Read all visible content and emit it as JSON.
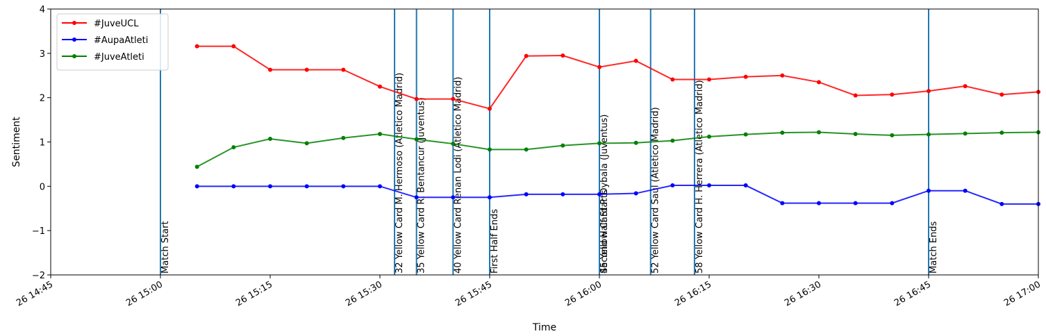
{
  "chart_data": {
    "type": "line",
    "title": "",
    "xlabel": "Time",
    "ylabel": "Sentiment",
    "ylim": [
      -2,
      4
    ],
    "yticks": [
      -2,
      -1,
      0,
      1,
      2,
      3,
      4
    ],
    "ytick_labels": [
      "−2",
      "−1",
      "0",
      "1",
      "2",
      "3",
      "4"
    ],
    "xlim": [
      "14:45",
      "17:00"
    ],
    "xticks": [
      "14:45",
      "15:00",
      "15:15",
      "15:30",
      "15:45",
      "16:00",
      "16:15",
      "16:30",
      "16:45",
      "17:00"
    ],
    "xtick_labels": [
      "26 14:45",
      "26 15:00",
      "26 15:15",
      "26 15:30",
      "26 15:45",
      "26 16:00",
      "26 16:15",
      "26 16:30",
      "26 16:45",
      "26 17:00"
    ],
    "legend_position": "top-left",
    "x": [
      "15:05",
      "15:10",
      "15:15",
      "15:20",
      "15:25",
      "15:30",
      "15:35",
      "15:40",
      "15:45",
      "15:50",
      "15:55",
      "16:00",
      "16:05",
      "16:10",
      "16:15",
      "16:20",
      "16:25",
      "16:30",
      "16:35",
      "16:40",
      "16:45",
      "16:50",
      "16:55",
      "17:00"
    ],
    "series": [
      {
        "name": "#JuveUCL",
        "color": "#ff0000",
        "values": [
          3.16,
          3.16,
          2.63,
          2.63,
          2.63,
          2.25,
          1.97,
          1.97,
          1.75,
          2.94,
          2.95,
          2.69,
          2.83,
          2.41,
          2.41,
          2.47,
          2.5,
          2.35,
          2.05,
          2.07,
          2.15,
          2.26,
          2.07,
          2.13
        ]
      },
      {
        "name": "#AupaAtleti",
        "color": "#0000ff",
        "values": [
          0.0,
          0.0,
          0.0,
          0.0,
          0.0,
          0.0,
          -0.25,
          -0.25,
          -0.25,
          -0.18,
          -0.18,
          -0.18,
          -0.16,
          0.02,
          0.02,
          0.02,
          -0.38,
          -0.38,
          -0.38,
          -0.38,
          -0.1,
          -0.1,
          -0.4,
          -0.4
        ]
      },
      {
        "name": "#JuveAtleti",
        "color": "#008000",
        "values": [
          0.44,
          0.88,
          1.07,
          0.97,
          1.09,
          1.18,
          1.06,
          0.96,
          0.83,
          0.83,
          0.92,
          0.97,
          0.98,
          1.03,
          1.12,
          1.17,
          1.21,
          1.22,
          1.18,
          1.15,
          1.17,
          1.19,
          1.21,
          1.22
        ]
      }
    ],
    "event_color": "#1f77b4",
    "events": [
      {
        "time": "15:00",
        "label": "Match Start"
      },
      {
        "time": "15:32",
        "label": "32 Yellow Card M. Hermoso (Atletico Madrid)"
      },
      {
        "time": "15:35",
        "label": "35 Yellow Card R. Bentancur (Juventus)"
      },
      {
        "time": "15:40",
        "label": "40 Yellow Card Renan Lodi (Atletico Madrid)"
      },
      {
        "time": "15:45",
        "label": "First Half Ends"
      },
      {
        "time": "16:00",
        "label": "Second Half Starts"
      },
      {
        "time": "16:00",
        "label": "45 Yellow Card P. Dybala (Juventus)"
      },
      {
        "time": "16:07",
        "label": "52 Yellow Card Saul (Atletico Madrid)"
      },
      {
        "time": "16:13",
        "label": "58 Yellow Card H. Herrera (Atletico Madrid)"
      },
      {
        "time": "16:45",
        "label": "Match Ends"
      }
    ],
    "grid": false
  }
}
